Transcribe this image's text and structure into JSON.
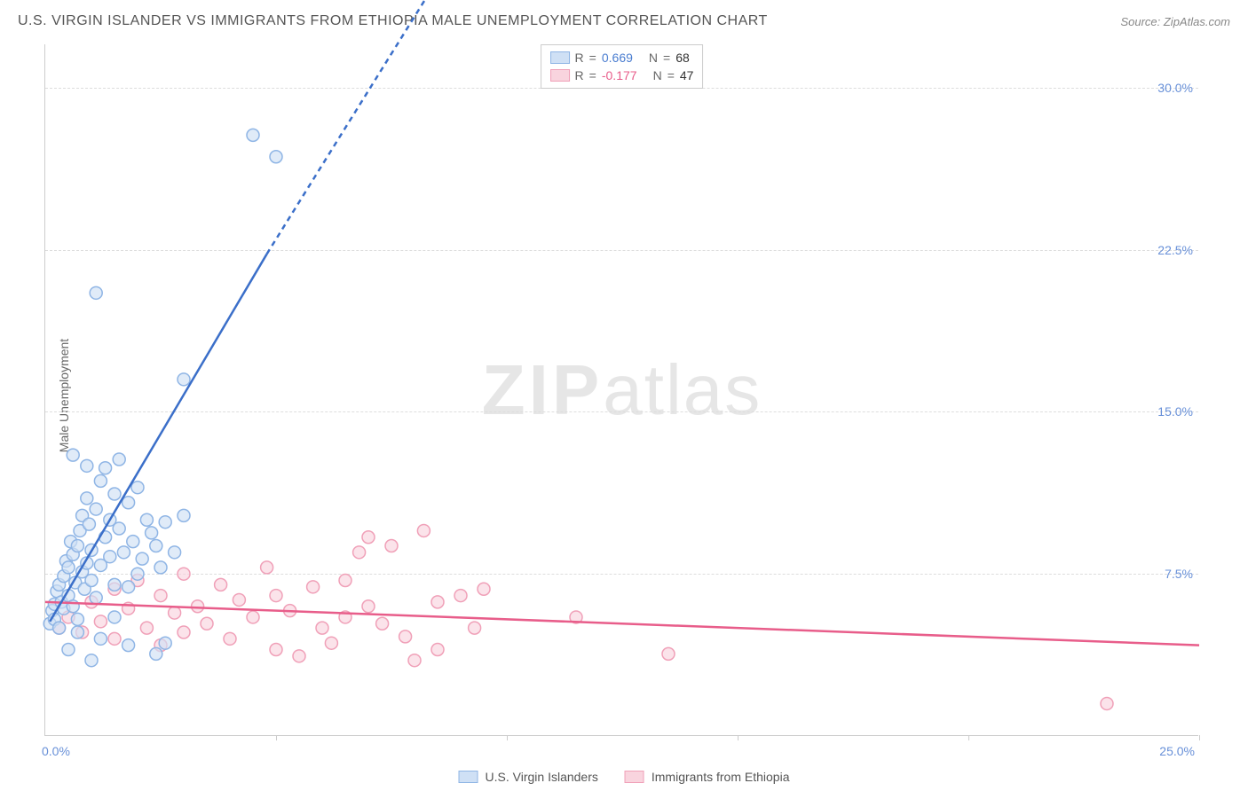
{
  "title": "U.S. VIRGIN ISLANDER VS IMMIGRANTS FROM ETHIOPIA MALE UNEMPLOYMENT CORRELATION CHART",
  "source": "Source: ZipAtlas.com",
  "y_axis_label": "Male Unemployment",
  "watermark_zip": "ZIP",
  "watermark_atlas": "atlas",
  "chart": {
    "type": "scatter",
    "xlim": [
      0,
      25
    ],
    "ylim": [
      0,
      32
    ],
    "xtick_min_label": "0.0%",
    "xtick_max_label": "25.0%",
    "xticks": [
      5,
      10,
      15,
      20,
      25
    ],
    "yticks": [
      7.5,
      15.0,
      22.5,
      30.0
    ],
    "ytick_labels": [
      "7.5%",
      "15.0%",
      "22.5%",
      "30.0%"
    ],
    "grid_color": "#dddddd",
    "background_color": "#ffffff",
    "marker_radius": 7,
    "marker_stroke_width": 1.5,
    "trend_line_width": 2.5,
    "trend_dash": "6,5"
  },
  "series_a": {
    "name": "U.S. Virgin Islanders",
    "fill": "#cfe0f5",
    "stroke": "#8fb5e5",
    "line_color": "#3b6fc9",
    "r_label": "R",
    "r_value": "0.669",
    "n_label": "N",
    "n_value": "68",
    "trend_start": [
      0.1,
      5.3
    ],
    "trend_solid_end": [
      4.8,
      22.3
    ],
    "trend_dash_end": [
      8.5,
      35.0
    ],
    "points": [
      [
        0.1,
        5.2
      ],
      [
        0.15,
        5.8
      ],
      [
        0.2,
        6.1
      ],
      [
        0.2,
        5.4
      ],
      [
        0.25,
        6.7
      ],
      [
        0.3,
        7.0
      ],
      [
        0.3,
        5.0
      ],
      [
        0.35,
        6.2
      ],
      [
        0.4,
        7.4
      ],
      [
        0.4,
        5.9
      ],
      [
        0.45,
        8.1
      ],
      [
        0.5,
        6.5
      ],
      [
        0.5,
        7.8
      ],
      [
        0.55,
        9.0
      ],
      [
        0.6,
        8.4
      ],
      [
        0.6,
        6.0
      ],
      [
        0.65,
        7.1
      ],
      [
        0.7,
        5.4
      ],
      [
        0.7,
        8.8
      ],
      [
        0.75,
        9.5
      ],
      [
        0.8,
        10.2
      ],
      [
        0.8,
        7.6
      ],
      [
        0.85,
        6.8
      ],
      [
        0.9,
        8.0
      ],
      [
        0.9,
        11.0
      ],
      [
        0.95,
        9.8
      ],
      [
        1.0,
        7.2
      ],
      [
        1.0,
        8.6
      ],
      [
        1.1,
        10.5
      ],
      [
        1.1,
        6.4
      ],
      [
        1.2,
        11.8
      ],
      [
        1.2,
        7.9
      ],
      [
        1.3,
        9.2
      ],
      [
        1.3,
        12.4
      ],
      [
        1.4,
        8.3
      ],
      [
        1.4,
        10.0
      ],
      [
        1.5,
        11.2
      ],
      [
        1.5,
        7.0
      ],
      [
        1.6,
        9.6
      ],
      [
        1.6,
        12.8
      ],
      [
        1.7,
        8.5
      ],
      [
        1.8,
        10.8
      ],
      [
        1.8,
        6.9
      ],
      [
        1.9,
        9.0
      ],
      [
        2.0,
        11.5
      ],
      [
        2.0,
        7.5
      ],
      [
        2.1,
        8.2
      ],
      [
        2.2,
        10.0
      ],
      [
        2.3,
        9.4
      ],
      [
        2.4,
        8.8
      ],
      [
        2.5,
        7.8
      ],
      [
        2.6,
        9.9
      ],
      [
        2.8,
        8.5
      ],
      [
        3.0,
        10.2
      ],
      [
        0.5,
        4.0
      ],
      [
        1.2,
        4.5
      ],
      [
        1.8,
        4.2
      ],
      [
        2.4,
        3.8
      ],
      [
        1.0,
        3.5
      ],
      [
        0.7,
        4.8
      ],
      [
        1.5,
        5.5
      ],
      [
        0.6,
        13.0
      ],
      [
        0.9,
        12.5
      ],
      [
        1.1,
        20.5
      ],
      [
        3.0,
        16.5
      ],
      [
        4.5,
        27.8
      ],
      [
        5.0,
        26.8
      ],
      [
        2.6,
        4.3
      ]
    ]
  },
  "series_b": {
    "name": "Immigrants from Ethiopia",
    "fill": "#f9d4de",
    "stroke": "#f0a0b8",
    "line_color": "#e85d8a",
    "r_label": "R",
    "r_value": "-0.177",
    "n_label": "N",
    "n_value": "47",
    "trend_start": [
      0.0,
      6.2
    ],
    "trend_solid_end": [
      25.0,
      4.2
    ],
    "points": [
      [
        0.3,
        5.0
      ],
      [
        0.5,
        5.5
      ],
      [
        0.8,
        4.8
      ],
      [
        1.0,
        6.2
      ],
      [
        1.2,
        5.3
      ],
      [
        1.5,
        6.8
      ],
      [
        1.5,
        4.5
      ],
      [
        1.8,
        5.9
      ],
      [
        2.0,
        7.2
      ],
      [
        2.2,
        5.0
      ],
      [
        2.5,
        6.5
      ],
      [
        2.5,
        4.2
      ],
      [
        2.8,
        5.7
      ],
      [
        3.0,
        7.5
      ],
      [
        3.0,
        4.8
      ],
      [
        3.3,
        6.0
      ],
      [
        3.5,
        5.2
      ],
      [
        3.8,
        7.0
      ],
      [
        4.0,
        4.5
      ],
      [
        4.2,
        6.3
      ],
      [
        4.5,
        5.5
      ],
      [
        4.8,
        7.8
      ],
      [
        5.0,
        4.0
      ],
      [
        5.0,
        6.5
      ],
      [
        5.3,
        5.8
      ],
      [
        5.5,
        3.7
      ],
      [
        5.8,
        6.9
      ],
      [
        6.0,
        5.0
      ],
      [
        6.2,
        4.3
      ],
      [
        6.5,
        7.2
      ],
      [
        6.5,
        5.5
      ],
      [
        6.8,
        8.5
      ],
      [
        7.0,
        6.0
      ],
      [
        7.0,
        9.2
      ],
      [
        7.3,
        5.2
      ],
      [
        7.5,
        8.8
      ],
      [
        7.8,
        4.6
      ],
      [
        8.0,
        3.5
      ],
      [
        8.2,
        9.5
      ],
      [
        8.5,
        6.2
      ],
      [
        8.5,
        4.0
      ],
      [
        9.0,
        6.5
      ],
      [
        9.3,
        5.0
      ],
      [
        9.5,
        6.8
      ],
      [
        11.5,
        5.5
      ],
      [
        13.5,
        3.8
      ],
      [
        23.0,
        1.5
      ]
    ]
  },
  "legend_bottom": {
    "a_label": "U.S. Virgin Islanders",
    "b_label": "Immigrants from Ethiopia"
  }
}
